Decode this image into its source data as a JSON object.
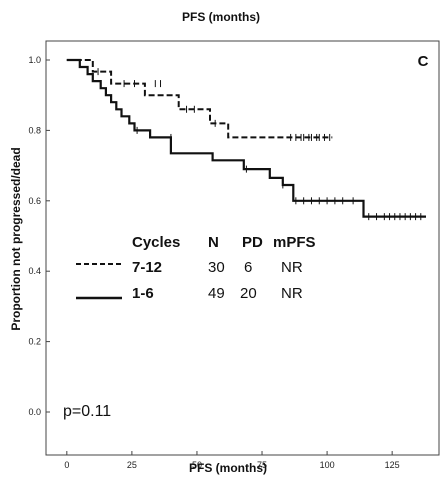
{
  "chart_data": {
    "type": "line",
    "title": "PFS (months)",
    "xlabel": "PFS (months)",
    "ylabel": "Proportion not progressed/dead",
    "panel_label": "C",
    "xlim": [
      -8,
      143
    ],
    "ylim": [
      0.0,
      1.0
    ],
    "x_ticks": [
      0,
      25,
      50,
      75,
      100,
      125
    ],
    "y_ticks": [
      0.0,
      0.2,
      0.4,
      0.6,
      0.8,
      1.0
    ],
    "y_tick_labels": [
      "0.0",
      "0.2",
      "0.4",
      "0.6",
      "0.8",
      "1.0"
    ],
    "annotation": "p=0.11",
    "legend": {
      "headers": [
        "Cycles",
        "N",
        "PD",
        "mPFS"
      ],
      "rows": [
        {
          "cycles": "7-12",
          "n": "30",
          "pd": "6",
          "mpfs": "NR",
          "style": "dashed"
        },
        {
          "cycles": "1-6",
          "n": "49",
          "pd": "20",
          "mpfs": "NR",
          "style": "solid"
        }
      ]
    },
    "series": [
      {
        "style": "dashed",
        "steps": [
          [
            0,
            1.0
          ],
          [
            10,
            1.0
          ],
          [
            10,
            0.967
          ],
          [
            17,
            0.967
          ],
          [
            17,
            0.933
          ],
          [
            30,
            0.933
          ],
          [
            30,
            0.9
          ],
          [
            43,
            0.9
          ],
          [
            43,
            0.86
          ],
          [
            55,
            0.86
          ],
          [
            55,
            0.82
          ],
          [
            62,
            0.82
          ],
          [
            62,
            0.78
          ],
          [
            102,
            0.78
          ]
        ],
        "censored": [
          [
            12,
            0.967
          ],
          [
            22,
            0.933
          ],
          [
            26,
            0.933
          ],
          [
            34,
            0.933
          ],
          [
            36,
            0.933
          ],
          [
            46,
            0.86
          ],
          [
            49,
            0.86
          ],
          [
            57,
            0.82
          ],
          [
            86,
            0.78
          ],
          [
            88,
            0.78
          ],
          [
            90,
            0.78
          ],
          [
            91,
            0.78
          ],
          [
            93,
            0.78
          ],
          [
            94,
            0.78
          ],
          [
            96,
            0.78
          ],
          [
            97,
            0.78
          ],
          [
            99,
            0.78
          ],
          [
            101,
            0.78
          ]
        ]
      },
      {
        "style": "solid",
        "steps": [
          [
            0,
            1.0
          ],
          [
            5,
            1.0
          ],
          [
            5,
            0.98
          ],
          [
            8,
            0.98
          ],
          [
            8,
            0.96
          ],
          [
            10,
            0.96
          ],
          [
            10,
            0.94
          ],
          [
            13,
            0.94
          ],
          [
            13,
            0.92
          ],
          [
            15,
            0.92
          ],
          [
            15,
            0.9
          ],
          [
            17,
            0.9
          ],
          [
            17,
            0.88
          ],
          [
            19,
            0.88
          ],
          [
            19,
            0.86
          ],
          [
            21,
            0.86
          ],
          [
            21,
            0.84
          ],
          [
            24,
            0.84
          ],
          [
            24,
            0.82
          ],
          [
            26,
            0.82
          ],
          [
            26,
            0.8
          ],
          [
            32,
            0.8
          ],
          [
            32,
            0.78
          ],
          [
            40,
            0.78
          ],
          [
            40,
            0.735
          ],
          [
            56,
            0.735
          ],
          [
            56,
            0.715
          ],
          [
            68,
            0.715
          ],
          [
            68,
            0.69
          ],
          [
            78,
            0.69
          ],
          [
            78,
            0.665
          ],
          [
            83,
            0.665
          ],
          [
            83,
            0.645
          ],
          [
            87,
            0.645
          ],
          [
            87,
            0.6
          ],
          [
            114,
            0.6
          ],
          [
            114,
            0.555
          ],
          [
            138,
            0.555
          ]
        ],
        "censored": [
          [
            27,
            0.8
          ],
          [
            40,
            0.78
          ],
          [
            69,
            0.69
          ],
          [
            83,
            0.645
          ],
          [
            88,
            0.6
          ],
          [
            91,
            0.6
          ],
          [
            94,
            0.6
          ],
          [
            97,
            0.6
          ],
          [
            100,
            0.6
          ],
          [
            103,
            0.6
          ],
          [
            106,
            0.6
          ],
          [
            110,
            0.6
          ],
          [
            116,
            0.555
          ],
          [
            119,
            0.555
          ],
          [
            122,
            0.555
          ],
          [
            124,
            0.555
          ],
          [
            126,
            0.555
          ],
          [
            128,
            0.555
          ],
          [
            130,
            0.555
          ],
          [
            132,
            0.555
          ],
          [
            134,
            0.555
          ],
          [
            136,
            0.555
          ]
        ]
      }
    ]
  }
}
